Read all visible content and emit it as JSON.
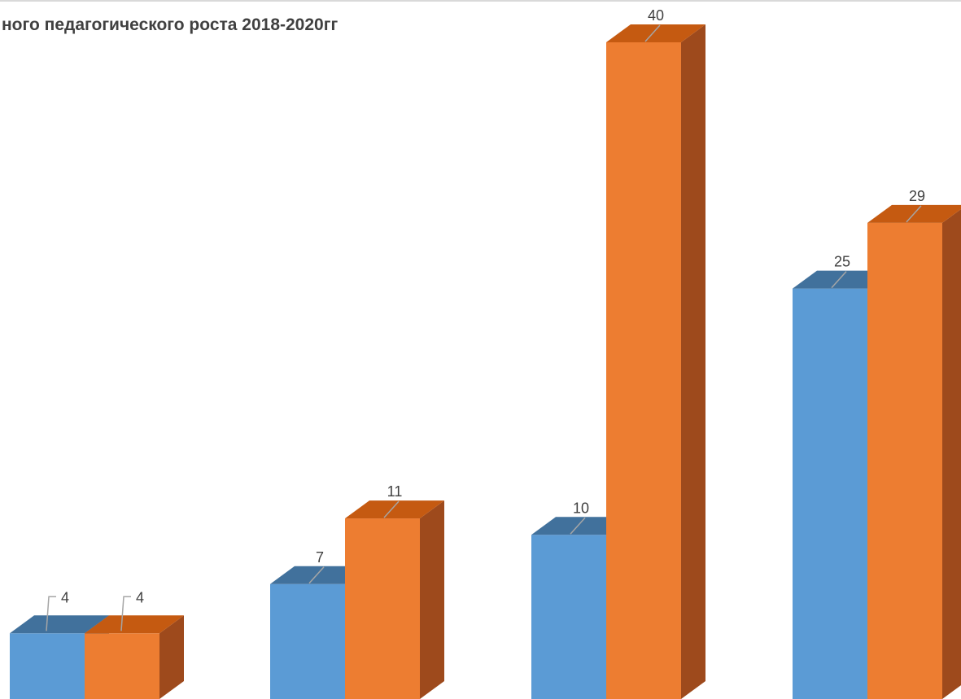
{
  "chart_data": {
    "type": "bar",
    "title": "ного педагогического роста 2018-2020гг",
    "xlabel": "",
    "ylabel": "",
    "categories": [
      "",
      "",
      "",
      ""
    ],
    "series": [
      {
        "values": [
          4,
          7,
          10,
          25
        ]
      },
      {
        "values": [
          4,
          11,
          40,
          29
        ]
      }
    ],
    "data_labels": {
      "series_0": [
        "4",
        "7",
        "10",
        "25"
      ],
      "series_1": [
        "4",
        "11",
        "40",
        "29"
      ]
    },
    "ylim": [
      0,
      42
    ],
    "grid": false,
    "legend": "none",
    "style": "3d-column"
  },
  "colors": {
    "series_0": {
      "front": "#5B9BD5",
      "top": "#41719C",
      "side": "#2E5F8C"
    },
    "series_1": {
      "front": "#ED7D31",
      "top": "#C55A11",
      "side": "#9E4A1C"
    },
    "label_text": "#404040",
    "leader_line": "#A6A6A6",
    "frame": "#D9D9D9"
  }
}
